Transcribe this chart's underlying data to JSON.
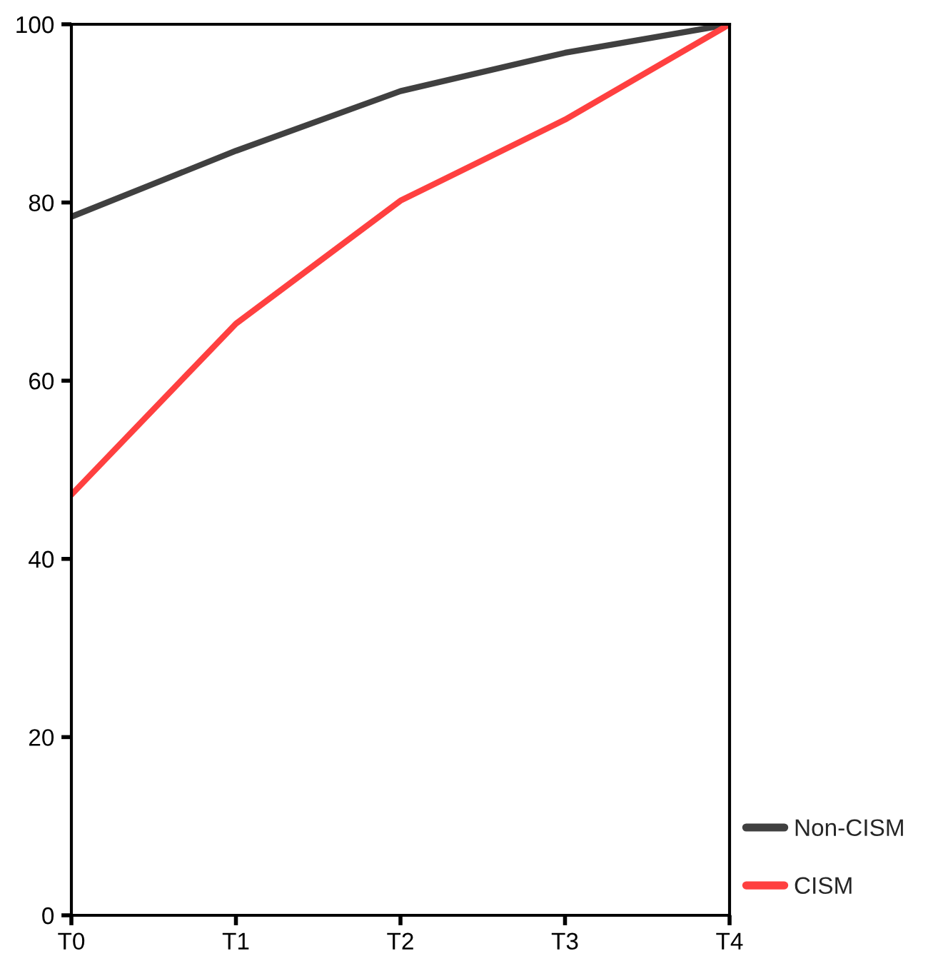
{
  "chart_data": {
    "type": "line",
    "categories": [
      "T0",
      "T1",
      "T2",
      "T3",
      "T4"
    ],
    "series": [
      {
        "name": "Non-CISM",
        "color": "#404040",
        "values": [
          78.4,
          85.8,
          92.5,
          96.8,
          100
        ]
      },
      {
        "name": "CISM",
        "color": "#ff4040",
        "values": [
          47.2,
          66.4,
          80.2,
          89.3,
          100
        ]
      }
    ],
    "ylim": [
      0,
      100
    ],
    "yticks": [
      0,
      20,
      40,
      60,
      80,
      100
    ],
    "grid": false,
    "legend": "bottom right",
    "marker": "none",
    "line_style": "solid"
  }
}
